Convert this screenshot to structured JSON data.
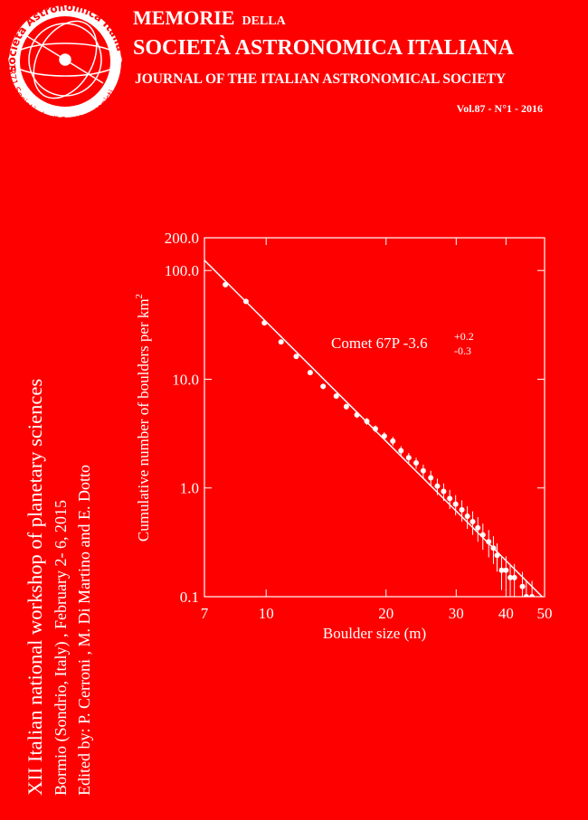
{
  "header": {
    "logo_top": "Società Astronomica Italiana",
    "logo_bottom": "1871 Società degli Spettroscopisti",
    "title_word": "MEMORIE",
    "title_small": "DELLA",
    "title_line2": "SOCIETÀ ASTRONOMICA ITALIANA",
    "subtitle": "JOURNAL OF THE ITALIAN ASTRONOMICAL SOCIETY",
    "volume": "Vol.87 - N°1  - 2016"
  },
  "side": {
    "line1": "XII Italian  national  workshop of planetary  sciences",
    "line2": "Bormio (Sondrio, Italy) , February  2- 6, 2015",
    "line3": "Edited by: P. Cerroni , M. Di Martino and E. Dotto"
  },
  "chart_data": {
    "type": "scatter",
    "x_label": "Boulder size (m)",
    "y_label": "Cumulative number of boulders per km",
    "y_label_sup": "2",
    "annotation": "Comet 67P  -3.6",
    "annotation_sup": "+0.2",
    "annotation_sub": "-0.3",
    "xscale": "log",
    "yscale": "log",
    "color": "#ffffff",
    "xlim": [
      7,
      50
    ],
    "ylim": [
      0.1,
      200
    ],
    "xticks": [
      7,
      10,
      20,
      30,
      40,
      50
    ],
    "yticks": [
      0.1,
      {
        "value": 1,
        "label": "1.0"
      },
      {
        "value": 10,
        "label": "10.0"
      },
      {
        "value": 100,
        "label": "100.0"
      },
      {
        "value": 200,
        "label": "200.0"
      }
    ],
    "x": [
      7.9,
      8.9,
      9.9,
      10.9,
      11.9,
      12.9,
      13.9,
      15.0,
      15.9,
      16.9,
      17.9,
      18.8,
      19.8,
      20.8,
      21.8,
      22.8,
      23.8,
      24.8,
      25.9,
      26.9,
      27.9,
      28.9,
      29.9,
      31,
      32,
      33,
      34,
      35,
      36.2,
      37.2,
      38,
      39,
      40,
      41,
      42,
      44,
      45,
      46.5
    ],
    "values": [
      74,
      52,
      33,
      22,
      16.2,
      11.5,
      8.6,
      7.0,
      5.6,
      4.7,
      4.1,
      3.5,
      3.0,
      2.7,
      2.2,
      1.9,
      1.7,
      1.44,
      1.24,
      1.04,
      0.93,
      0.8,
      0.71,
      0.63,
      0.55,
      0.49,
      0.43,
      0.37,
      0.32,
      0.28,
      0.24,
      0.175,
      0.175,
      0.15,
      0.15,
      0.124,
      0.1,
      0.1
    ],
    "errors": [
      2,
      1.5,
      1.2,
      1,
      0.8,
      0.6,
      0.5,
      0.4,
      0.35,
      0.3,
      0.3,
      0.25,
      0.25,
      0.25,
      0.22,
      0.2,
      0.2,
      0.2,
      0.2,
      0.18,
      0.17,
      0.16,
      0.15,
      0.14,
      0.13,
      0.12,
      0.11,
      0.1,
      0.09,
      0.08,
      0.07,
      0.06,
      0.06,
      0.05,
      0.05,
      0.045,
      0.04,
      0.04
    ],
    "fit_line": {
      "x": [
        7,
        50
      ],
      "y": [
        124,
        0.095
      ]
    }
  }
}
